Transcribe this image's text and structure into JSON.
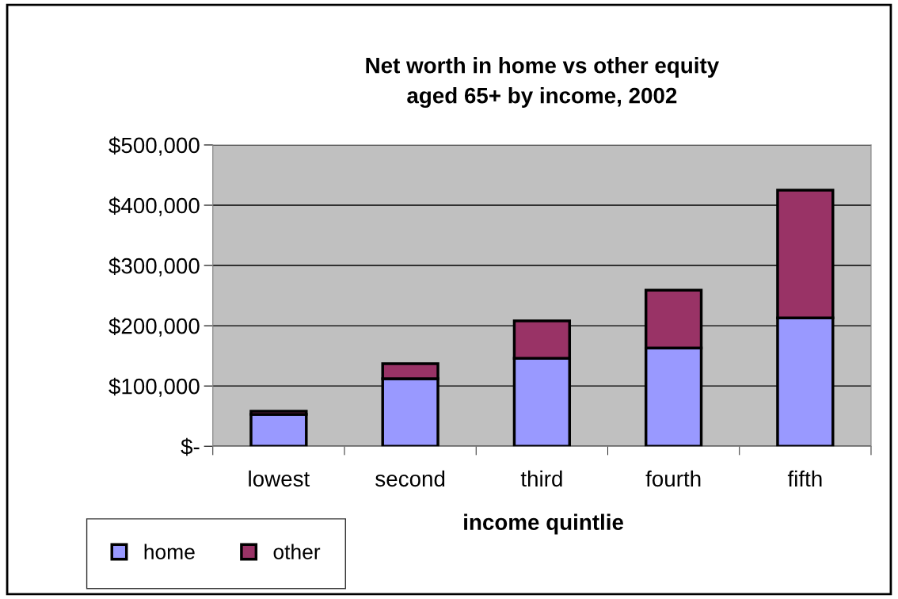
{
  "chart_data": {
    "type": "bar",
    "title": "Net worth in home vs other equity\naged 65+ by income, 2002",
    "xlabel": "income quintlie",
    "categories": [
      "lowest",
      "second",
      "third",
      "fourth",
      "fifth"
    ],
    "series": [
      {
        "name": "home",
        "color": "#9999ff",
        "values": [
          53000,
          112000,
          146000,
          163000,
          213000
        ]
      },
      {
        "name": "other",
        "color": "#993366",
        "values": [
          5000,
          25000,
          62000,
          96000,
          212000
        ]
      }
    ],
    "stacked": true,
    "ylim": [
      0,
      500000
    ],
    "yticks": [
      {
        "value": 0,
        "label": "$-"
      },
      {
        "value": 100000,
        "label": "$100,000"
      },
      {
        "value": 200000,
        "label": "$200,000"
      },
      {
        "value": 300000,
        "label": "$300,000"
      },
      {
        "value": 400000,
        "label": "$400,000"
      },
      {
        "value": 500000,
        "label": "$500,000"
      }
    ],
    "grid": "y",
    "legend": "bottom left"
  }
}
